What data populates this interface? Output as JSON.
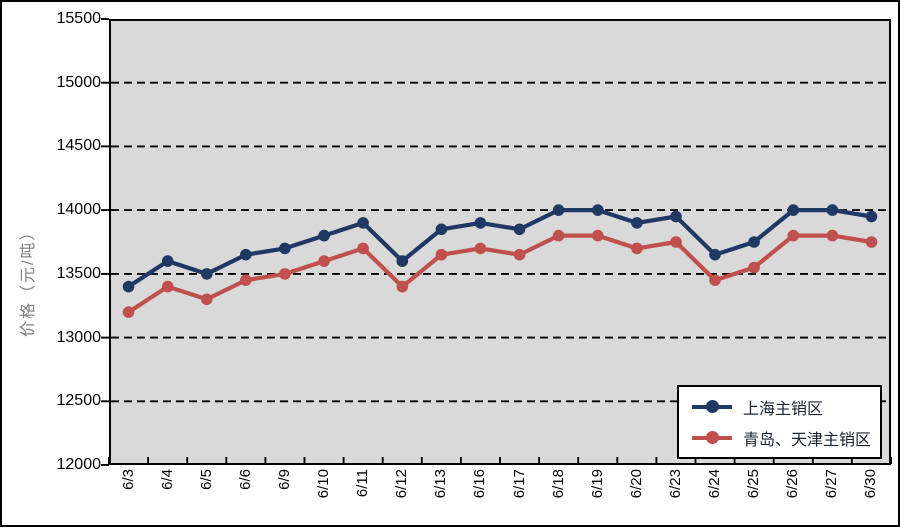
{
  "figure": {
    "background": "#ffffff",
    "outer_border_color": "#000000",
    "plot_background": "#d9d9d9",
    "gridline_color": "#000000",
    "gridline_style": "dashed",
    "axis_text_color": "#000000",
    "y_title_color": "#808080"
  },
  "chart_data": {
    "type": "line",
    "title": "",
    "xlabel": "",
    "ylabel": "价格（元/吨）",
    "ylim": [
      12000,
      15500
    ],
    "yticks": [
      12000,
      12500,
      13000,
      13500,
      14000,
      14500,
      15000,
      15500
    ],
    "grid": "horizontal dashed major gridlines",
    "legend_position": "bottom-right inside plot",
    "categories": [
      "6/3",
      "6/4",
      "6/5",
      "6/6",
      "6/9",
      "6/10",
      "6/11",
      "6/12",
      "6/13",
      "6/16",
      "6/17",
      "6/18",
      "6/19",
      "6/20",
      "6/23",
      "6/24",
      "6/25",
      "6/26",
      "6/27",
      "6/30"
    ],
    "series": [
      {
        "name": "上海主销区",
        "color": "#1f3864",
        "marker": "circle",
        "values": [
          13400,
          13600,
          13500,
          13650,
          13700,
          13800,
          13900,
          13600,
          13850,
          13900,
          13850,
          14000,
          14000,
          13900,
          13950,
          13650,
          13750,
          14000,
          14000,
          13950
        ]
      },
      {
        "name": "青岛、天津主销区",
        "color": "#c0504d",
        "marker": "circle",
        "values": [
          13200,
          13400,
          13300,
          13450,
          13500,
          13600,
          13700,
          13400,
          13650,
          13700,
          13650,
          13800,
          13800,
          13700,
          13750,
          13450,
          13550,
          13800,
          13800,
          13750
        ]
      }
    ]
  }
}
